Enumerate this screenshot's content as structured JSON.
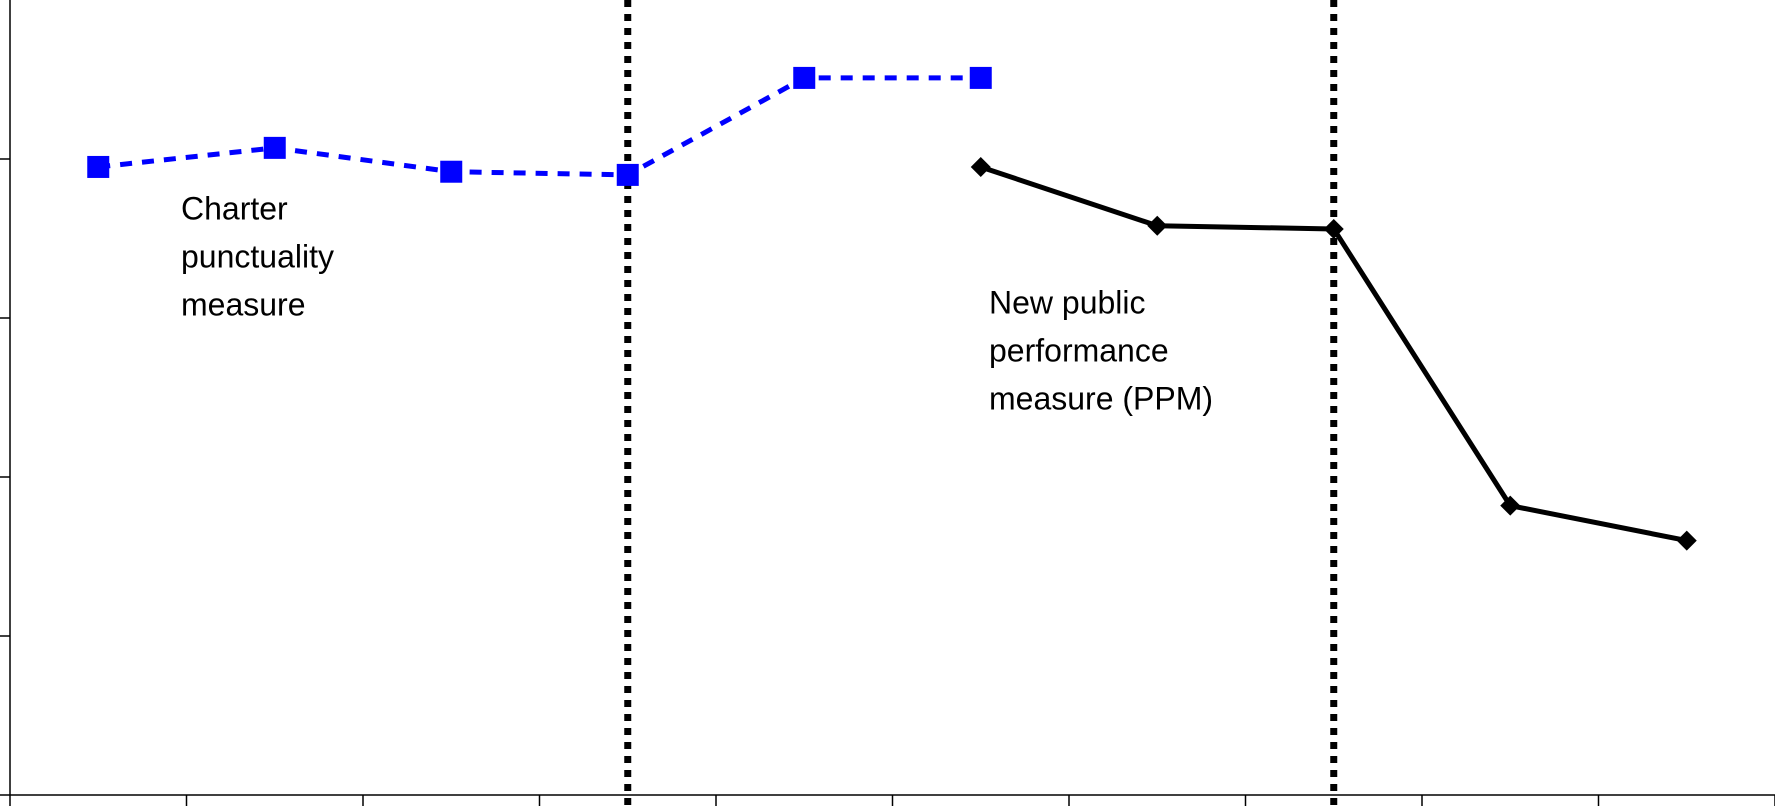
{
  "chart_data": {
    "type": "line",
    "categories": [
      null,
      null,
      null,
      null,
      null,
      null,
      null,
      null,
      null,
      null
    ],
    "series": [
      {
        "name": "Charter punctuality measure",
        "color": "#0000ff",
        "dash": true,
        "marker": "square",
        "values": [
          3.95,
          4.07,
          3.92,
          3.9,
          4.51,
          4.51,
          null,
          null,
          null,
          null
        ]
      },
      {
        "name": "New public performance measure (PPM)",
        "color": "#000000",
        "dash": false,
        "marker": "diamond",
        "values": [
          null,
          null,
          null,
          null,
          null,
          3.95,
          3.58,
          3.56,
          1.82,
          1.6
        ]
      }
    ],
    "ylim": [
      0,
      5
    ],
    "yticks": [
      0,
      1,
      2,
      3,
      4
    ],
    "reference_lines_at": [
      3,
      7
    ],
    "annotations": [
      {
        "lines": [
          "Charter",
          "punctuality",
          "measure"
        ]
      },
      {
        "lines": [
          "New public",
          "performance",
          "measure (PPM)"
        ]
      }
    ]
  }
}
